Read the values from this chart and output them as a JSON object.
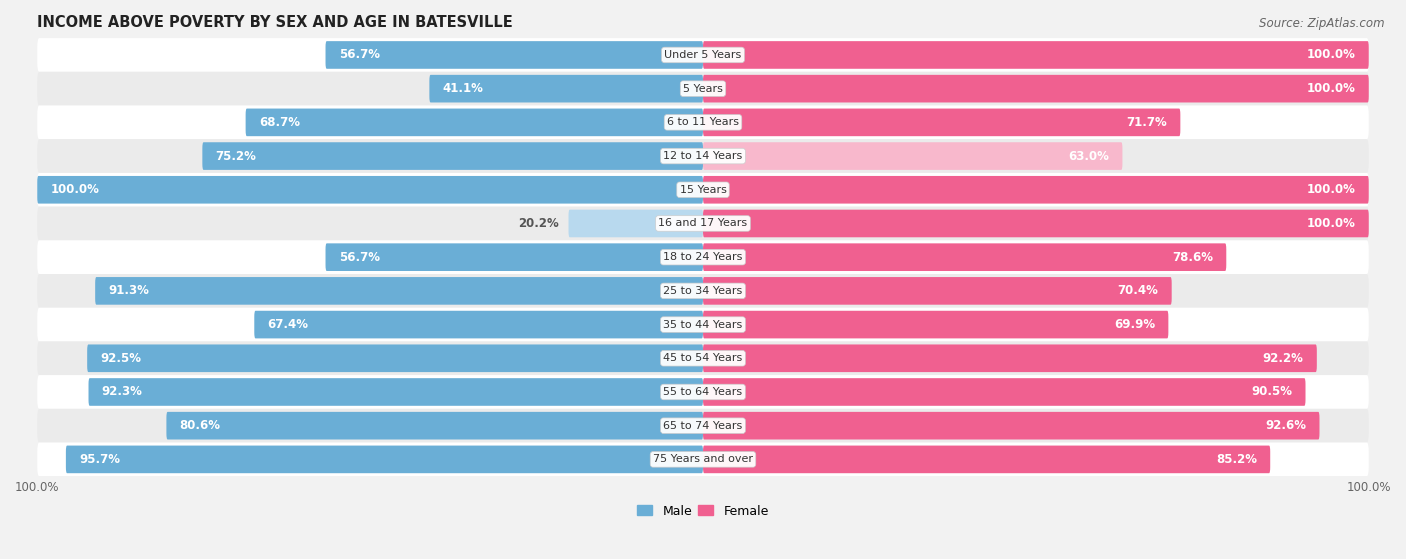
{
  "title": "INCOME ABOVE POVERTY BY SEX AND AGE IN BATESVILLE",
  "source": "Source: ZipAtlas.com",
  "categories": [
    "Under 5 Years",
    "5 Years",
    "6 to 11 Years",
    "12 to 14 Years",
    "15 Years",
    "16 and 17 Years",
    "18 to 24 Years",
    "25 to 34 Years",
    "35 to 44 Years",
    "45 to 54 Years",
    "55 to 64 Years",
    "65 to 74 Years",
    "75 Years and over"
  ],
  "male": [
    56.7,
    41.1,
    68.7,
    75.2,
    100.0,
    20.2,
    56.7,
    91.3,
    67.4,
    92.5,
    92.3,
    80.6,
    95.7
  ],
  "female": [
    100.0,
    100.0,
    71.7,
    63.0,
    100.0,
    100.0,
    78.6,
    70.4,
    69.9,
    92.2,
    90.5,
    92.6,
    85.2
  ],
  "male_color_dark": "#6AAED6",
  "male_color_light": "#B8D9EE",
  "female_color_dark": "#F06090",
  "female_color_light": "#F8B8CC",
  "male_light_threshold": 30.0,
  "male_label": "Male",
  "female_label": "Female",
  "background_color": "#F2F2F2",
  "row_bg_odd": "#FFFFFF",
  "row_bg_even": "#EBEBEB",
  "title_fontsize": 10.5,
  "source_fontsize": 8.5,
  "tick_fontsize": 8.5,
  "label_fontsize": 8.5,
  "cat_fontsize": 8.0,
  "bottom_tick_left": "100.0%",
  "bottom_tick_right": "100.0%"
}
